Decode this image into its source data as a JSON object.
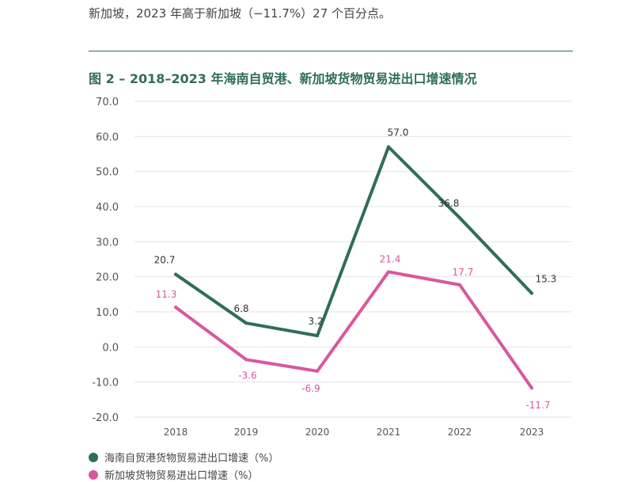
{
  "intro_text": "新加坡，2023 年高于新加坡（−11.7%）27 个百分点。",
  "figure_title": "图 2 – 2018–2023 年海南自贸港、新加坡货物贸易进出口增速情况",
  "colors": {
    "accent": "#2f6e56",
    "series1": "#2f6e56",
    "series2": "#d9589d"
  },
  "chart_data": {
    "type": "line",
    "title": "图 2 – 2018–2023 年海南自贸港、新加坡货物贸易进出口增速情况",
    "categories": [
      "2018",
      "2019",
      "2020",
      "2021",
      "2022",
      "2023"
    ],
    "y_ticks": [
      "70.0",
      "60.0",
      "50.0",
      "40.0",
      "30.0",
      "20.0",
      "10.0",
      "0.0",
      "-10.0",
      "-20.0"
    ],
    "ylim": [
      -20,
      70
    ],
    "grid": true,
    "legend_position": "bottom-left",
    "series": [
      {
        "name": "海南自贸港货物贸易进出口增速（%）",
        "color": "#2f6e56",
        "values": [
          20.7,
          6.8,
          3.2,
          57.0,
          36.8,
          15.3
        ],
        "labels": [
          "20.7",
          "6.8",
          "3.2",
          "57.0",
          "36.8",
          "15.3"
        ]
      },
      {
        "name": "新加坡货物贸易进出口增速（%）",
        "color": "#d9589d",
        "values": [
          11.3,
          -3.6,
          -6.9,
          21.4,
          17.7,
          -11.7
        ],
        "labels": [
          "11.3",
          "-3.6",
          "-6.9",
          "21.4",
          "17.7",
          "-11.7"
        ]
      }
    ]
  }
}
